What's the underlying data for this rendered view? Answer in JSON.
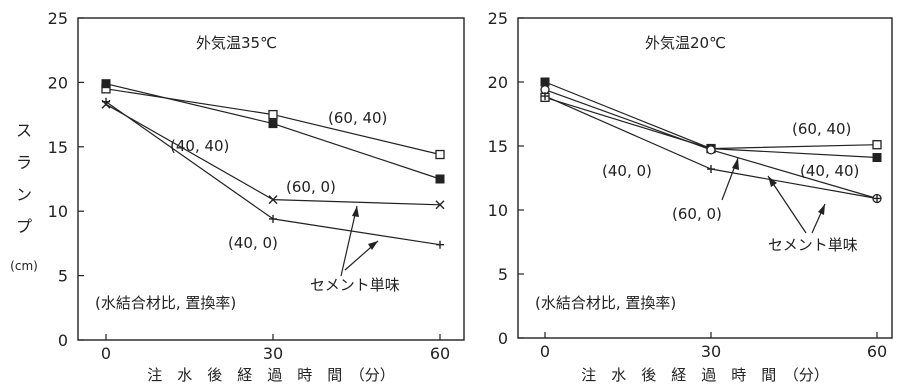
{
  "shared": {
    "ylabel": "スランプ",
    "yunit": "(cm)",
    "xlabel": "注　水　後　経　過　時　間　（分）"
  },
  "chart_data": [
    {
      "type": "line",
      "title": "外気温35℃",
      "xlabel": "注水後経過時間（分）",
      "ylabel": "スランプ (cm)",
      "x": [
        0,
        30,
        60
      ],
      "x_ticks": [
        "0",
        "30",
        "60"
      ],
      "y_ticks": [
        "0",
        "5",
        "10",
        "15",
        "20",
        "25"
      ],
      "ylim": [
        0,
        25
      ],
      "grid": false,
      "series": [
        {
          "name": "(60, 40)",
          "marker": "open-square",
          "values": [
            19.5,
            17.5,
            14.4
          ]
        },
        {
          "name": "(40, 40)",
          "marker": "filled-square",
          "values": [
            19.9,
            16.8,
            12.5
          ]
        },
        {
          "name": "(60, 0)",
          "marker": "x",
          "values": [
            18.3,
            10.9,
            10.5
          ]
        },
        {
          "name": "(40, 0)",
          "marker": "plus",
          "values": [
            18.5,
            9.4,
            7.4
          ]
        }
      ],
      "annotations": {
        "legend_note": "(水結合材比, 置換率)",
        "cement_only": "セメント単味"
      }
    },
    {
      "type": "line",
      "title": "外気温20℃",
      "xlabel": "注水後経過時間（分）",
      "ylabel": "スランプ (cm)",
      "x": [
        0,
        30,
        60
      ],
      "x_ticks": [
        "0",
        "30",
        "60"
      ],
      "y_ticks": [
        "0",
        "5",
        "10",
        "15",
        "20",
        "25"
      ],
      "ylim": [
        0,
        25
      ],
      "grid": false,
      "series": [
        {
          "name": "(60, 40)",
          "marker": "open-square",
          "values": [
            18.8,
            14.8,
            15.1
          ]
        },
        {
          "name": "(40, 40)",
          "marker": "filled-square",
          "values": [
            20.0,
            14.8,
            14.1
          ]
        },
        {
          "name": "(60, 0)",
          "marker": "open-circle",
          "values": [
            19.4,
            14.7,
            10.9
          ]
        },
        {
          "name": "(40, 0)",
          "marker": "plus",
          "values": [
            18.9,
            13.2,
            10.9
          ]
        }
      ],
      "annotations": {
        "legend_note": "(水結合材比, 置換率)",
        "cement_only": "セメント単味"
      }
    }
  ]
}
